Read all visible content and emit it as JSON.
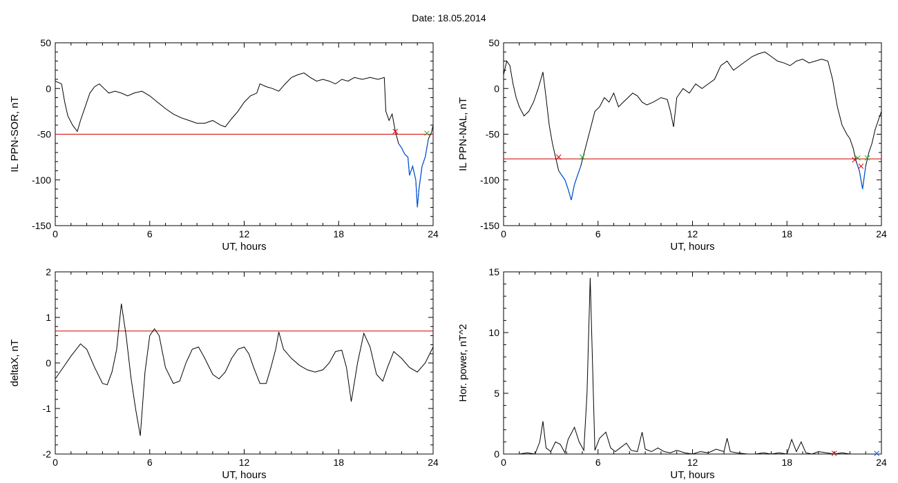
{
  "page_title": "Date:  18.05.2014",
  "colors": {
    "trace": "#000000",
    "threshold": "#cc0000",
    "below_threshold": "#0055dd",
    "start_marker": "#dd0000",
    "end_marker": "#22aa22",
    "axis": "#000000"
  },
  "chart_data": [
    {
      "id": "sor",
      "type": "line",
      "title": "",
      "xlabel": "UT, hours",
      "ylabel": "IL PPN-SOR, nT",
      "xlim": [
        0,
        24
      ],
      "ylim": [
        -150,
        50
      ],
      "xticks": [
        0,
        6,
        12,
        18,
        24
      ],
      "yticks": [
        -150,
        -100,
        -50,
        0,
        50
      ],
      "threshold": -50,
      "series": [
        {
          "x": [
            0,
            0.4,
            0.6,
            0.8,
            1.1,
            1.4,
            1.6,
            1.9,
            2.2,
            2.5,
            2.8,
            3.1,
            3.4,
            3.8,
            4.2,
            4.6,
            5.0,
            5.5,
            6.0,
            6.5,
            7.0,
            7.5,
            8.0,
            8.5,
            9.0,
            9.5,
            10.0,
            10.5,
            10.8,
            11.2,
            11.6,
            12.0,
            12.4,
            12.8,
            13.0,
            13.4,
            13.8,
            14.2,
            14.6,
            15.0,
            15.4,
            15.8,
            16.2,
            16.6,
            17.0,
            17.4,
            17.8,
            18.2,
            18.6,
            19.0,
            19.5,
            20.0,
            20.5,
            20.9,
            21.0,
            21.2,
            21.4,
            21.6,
            21.8,
            22.0,
            22.2,
            22.4,
            22.5,
            22.7,
            22.9,
            23.0,
            23.1,
            23.3,
            23.5,
            23.7,
            23.9,
            24.0
          ],
          "y": [
            8,
            5,
            -15,
            -30,
            -40,
            -47,
            -35,
            -20,
            -5,
            2,
            5,
            0,
            -5,
            -3,
            -5,
            -8,
            -5,
            -3,
            -8,
            -15,
            -22,
            -28,
            -32,
            -35,
            -38,
            -38,
            -35,
            -40,
            -42,
            -33,
            -25,
            -15,
            -8,
            -5,
            5,
            2,
            0,
            -3,
            5,
            12,
            15,
            17,
            12,
            8,
            10,
            8,
            5,
            10,
            8,
            12,
            10,
            12,
            10,
            12,
            -25,
            -35,
            -28,
            -47,
            -60,
            -65,
            -72,
            -75,
            -95,
            -85,
            -100,
            -130,
            -110,
            -85,
            -75,
            -55,
            -48,
            -40
          ]
        }
      ],
      "markers": [
        {
          "x": 21.6,
          "y": -47,
          "kind": "start"
        },
        {
          "x": 23.6,
          "y": -49,
          "kind": "end"
        }
      ]
    },
    {
      "id": "nal",
      "type": "line",
      "title": "",
      "xlabel": "UT, hours",
      "ylabel": "IL PPN-NAL, nT",
      "xlim": [
        0,
        24
      ],
      "ylim": [
        -150,
        50
      ],
      "xticks": [
        0,
        6,
        12,
        18,
        24
      ],
      "yticks": [
        -150,
        -100,
        -50,
        0,
        50
      ],
      "threshold": -77,
      "series": [
        {
          "x": [
            0,
            0.2,
            0.4,
            0.6,
            0.8,
            1.0,
            1.3,
            1.6,
            1.9,
            2.2,
            2.5,
            2.7,
            2.9,
            3.1,
            3.3,
            3.5,
            3.7,
            3.9,
            4.1,
            4.3,
            4.5,
            4.7,
            4.9,
            5.2,
            5.5,
            5.8,
            6.1,
            6.4,
            6.7,
            7.0,
            7.3,
            7.6,
            7.9,
            8.2,
            8.5,
            8.8,
            9.1,
            9.5,
            10.0,
            10.4,
            10.6,
            10.8,
            11.0,
            11.4,
            11.8,
            12.2,
            12.6,
            13.0,
            13.4,
            13.8,
            14.2,
            14.6,
            15.0,
            15.4,
            15.8,
            16.2,
            16.6,
            17.0,
            17.4,
            17.8,
            18.2,
            18.6,
            19.0,
            19.4,
            19.8,
            20.2,
            20.6,
            20.9,
            21.2,
            21.5,
            21.8,
            22.0,
            22.2,
            22.4,
            22.6,
            22.8,
            23.0,
            23.2,
            23.4,
            23.6,
            23.8,
            24.0
          ],
          "y": [
            15,
            30,
            25,
            5,
            -10,
            -20,
            -30,
            -25,
            -15,
            0,
            18,
            -10,
            -40,
            -60,
            -75,
            -90,
            -95,
            -100,
            -110,
            -122,
            -105,
            -95,
            -85,
            -65,
            -45,
            -25,
            -20,
            -10,
            -15,
            -5,
            -20,
            -15,
            -10,
            -5,
            -8,
            -15,
            -18,
            -15,
            -10,
            -12,
            -25,
            -42,
            -10,
            0,
            -5,
            5,
            0,
            5,
            10,
            25,
            30,
            20,
            25,
            30,
            35,
            38,
            40,
            35,
            30,
            28,
            25,
            30,
            32,
            28,
            30,
            32,
            30,
            10,
            -20,
            -40,
            -50,
            -55,
            -65,
            -80,
            -90,
            -110,
            -85,
            -70,
            -60,
            -45,
            -35,
            -25
          ]
        }
      ],
      "markers": [
        {
          "x": 3.5,
          "y": -75,
          "kind": "start"
        },
        {
          "x": 5.0,
          "y": -75,
          "kind": "end"
        },
        {
          "x": 22.3,
          "y": -78,
          "kind": "start"
        },
        {
          "x": 22.7,
          "y": -85,
          "kind": "start"
        },
        {
          "x": 22.5,
          "y": -76,
          "kind": "end"
        },
        {
          "x": 23.1,
          "y": -76,
          "kind": "end"
        }
      ]
    },
    {
      "id": "deltax",
      "type": "line",
      "title": "",
      "xlabel": "UT, hours",
      "ylabel": "deltaX, nT",
      "xlim": [
        0,
        24
      ],
      "ylim": [
        -2,
        2
      ],
      "xticks": [
        0,
        6,
        12,
        18,
        24
      ],
      "yticks": [
        -2,
        -1,
        0,
        1,
        2
      ],
      "threshold": 0.7,
      "series": [
        {
          "x": [
            0,
            0.5,
            1.0,
            1.6,
            2.0,
            2.5,
            3.0,
            3.3,
            3.6,
            3.9,
            4.2,
            4.5,
            4.8,
            5.1,
            5.4,
            5.7,
            6.0,
            6.3,
            6.6,
            7.0,
            7.5,
            7.9,
            8.3,
            8.7,
            9.1,
            9.5,
            10.0,
            10.4,
            10.8,
            11.2,
            11.6,
            12.0,
            12.3,
            12.6,
            13.0,
            13.4,
            13.7,
            14.0,
            14.2,
            14.5,
            15.0,
            15.5,
            16.0,
            16.5,
            17.0,
            17.4,
            17.8,
            18.2,
            18.5,
            18.8,
            19.2,
            19.6,
            20.0,
            20.4,
            20.8,
            21.1,
            21.5,
            22.0,
            22.5,
            23.0,
            23.5,
            24.0
          ],
          "y": [
            -0.35,
            -0.1,
            0.15,
            0.42,
            0.3,
            -0.1,
            -0.45,
            -0.48,
            -0.2,
            0.3,
            1.3,
            0.6,
            -0.3,
            -1.0,
            -1.6,
            -0.2,
            0.6,
            0.75,
            0.6,
            -0.1,
            -0.45,
            -0.4,
            0.0,
            0.3,
            0.35,
            0.1,
            -0.25,
            -0.35,
            -0.2,
            0.1,
            0.3,
            0.35,
            0.2,
            -0.1,
            -0.45,
            -0.45,
            -0.1,
            0.3,
            0.68,
            0.3,
            0.1,
            -0.05,
            -0.15,
            -0.2,
            -0.15,
            0.0,
            0.25,
            0.28,
            -0.1,
            -0.85,
            0.0,
            0.65,
            0.35,
            -0.25,
            -0.4,
            -0.1,
            0.25,
            0.1,
            -0.1,
            -0.2,
            0.0,
            0.35
          ]
        }
      ]
    },
    {
      "id": "power",
      "type": "line",
      "title": "",
      "xlabel": "UT, hours",
      "ylabel": "Hor. power, nT^2",
      "xlim": [
        0,
        24
      ],
      "ylim": [
        0,
        15
      ],
      "xticks": [
        0,
        6,
        12,
        18,
        24
      ],
      "yticks": [
        0,
        5,
        10,
        15
      ],
      "series": [
        {
          "x": [
            0,
            1.0,
            1.5,
            2.0,
            2.3,
            2.5,
            2.7,
            3.0,
            3.3,
            3.6,
            3.9,
            4.1,
            4.5,
            4.8,
            5.1,
            5.3,
            5.5,
            5.8,
            6.1,
            6.5,
            6.8,
            7.1,
            7.4,
            7.8,
            8.1,
            8.5,
            8.8,
            9.0,
            9.4,
            9.8,
            10.2,
            10.6,
            11.0,
            11.5,
            12.0,
            12.5,
            13.0,
            13.5,
            14.0,
            14.2,
            14.4,
            14.8,
            15.5,
            16.0,
            16.5,
            17.0,
            17.5,
            18.0,
            18.3,
            18.6,
            18.9,
            19.2,
            19.6,
            20.0,
            20.5,
            21.0,
            21.5,
            22.0,
            22.5,
            23.0,
            23.5,
            24.0
          ],
          "y": [
            0.0,
            0.0,
            0.1,
            0.0,
            1.0,
            2.7,
            0.5,
            0.2,
            1.0,
            0.8,
            0.1,
            1.2,
            2.2,
            1.0,
            0.3,
            5.0,
            14.5,
            0.3,
            1.3,
            1.8,
            0.5,
            0.2,
            0.5,
            0.9,
            0.3,
            0.2,
            1.8,
            0.4,
            0.2,
            0.5,
            0.2,
            0.1,
            0.3,
            0.1,
            0.0,
            0.2,
            0.1,
            0.4,
            0.2,
            1.3,
            0.2,
            0.1,
            0.0,
            0.0,
            0.1,
            0.0,
            0.1,
            0.0,
            1.2,
            0.2,
            1.0,
            0.1,
            0.0,
            0.2,
            0.1,
            0.0,
            0.1,
            0.0,
            0.0,
            0.0,
            0.0,
            0.0
          ]
        }
      ],
      "markers": [
        {
          "x": 21.0,
          "y": 0.05,
          "kind": "start"
        },
        {
          "x": 23.7,
          "y": 0.05,
          "kind": "below"
        }
      ]
    }
  ]
}
